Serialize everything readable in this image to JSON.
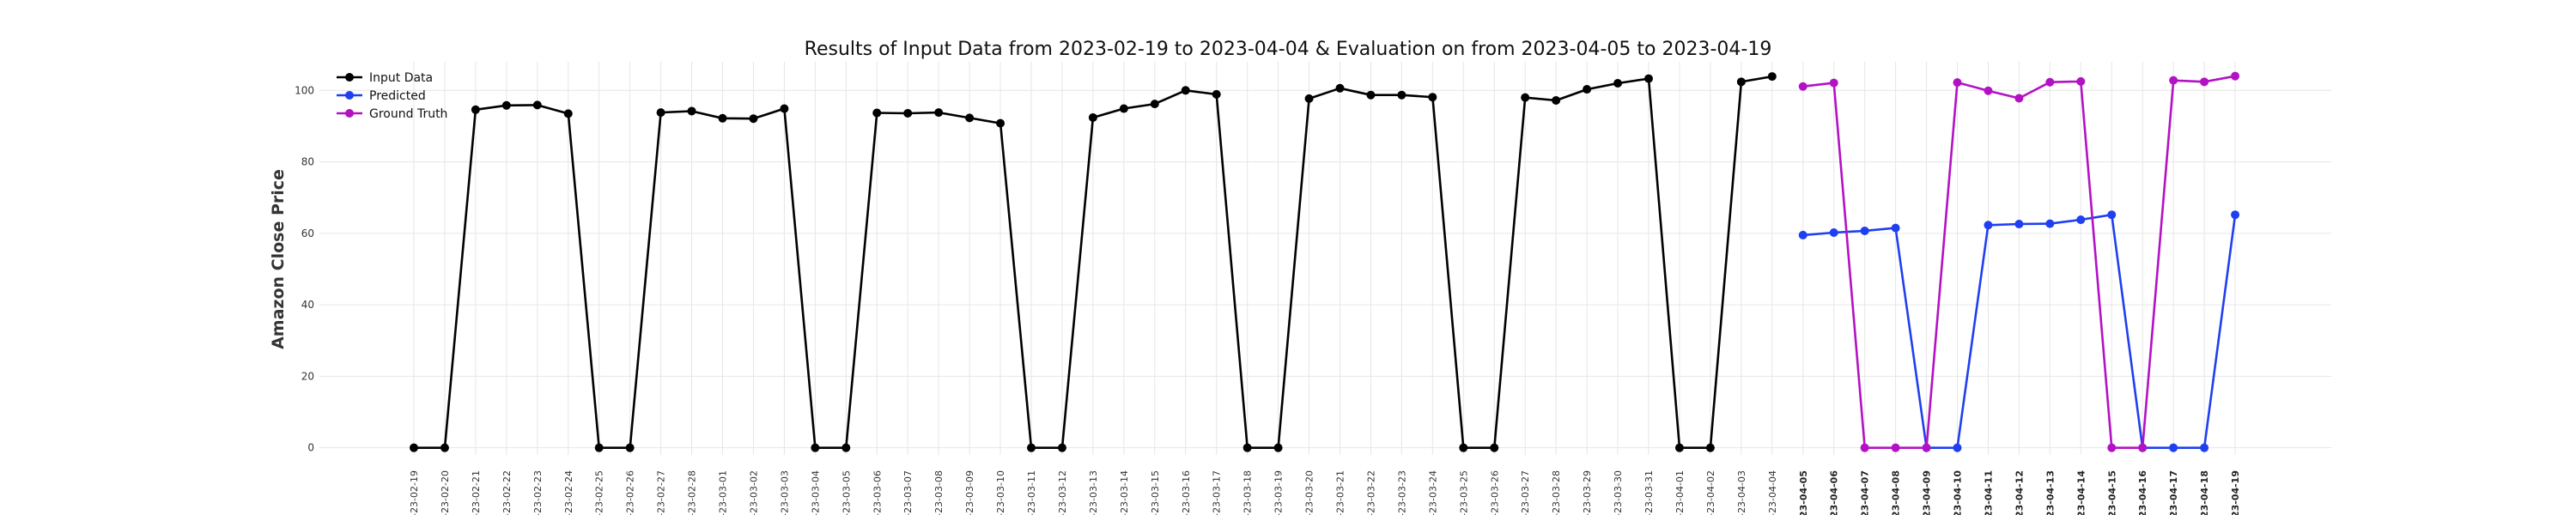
{
  "chart_data": {
    "type": "line",
    "title": "Results of Input Data from 2023-02-19 to 2023-04-04 & Evaluation on from 2023-04-05 to 2023-04-19",
    "xlabel": "",
    "ylabel": "Amazon Close Price",
    "ylim": [
      -2,
      108
    ],
    "yticks": [
      0,
      20,
      40,
      60,
      80,
      100
    ],
    "grid": true,
    "legend_position": "top-left",
    "x": [
      "2023-02-19",
      "2023-02-20",
      "2023-02-21",
      "2023-02-22",
      "2023-02-23",
      "2023-02-24",
      "2023-02-25",
      "2023-02-26",
      "2023-02-27",
      "2023-02-28",
      "2023-03-01",
      "2023-03-02",
      "2023-03-03",
      "2023-03-04",
      "2023-03-05",
      "2023-03-06",
      "2023-03-07",
      "2023-03-08",
      "2023-03-09",
      "2023-03-10",
      "2023-03-11",
      "2023-03-12",
      "2023-03-13",
      "2023-03-14",
      "2023-03-15",
      "2023-03-16",
      "2023-03-17",
      "2023-03-18",
      "2023-03-19",
      "2023-03-20",
      "2023-03-21",
      "2023-03-22",
      "2023-03-23",
      "2023-03-24",
      "2023-03-25",
      "2023-03-26",
      "2023-03-27",
      "2023-03-28",
      "2023-03-29",
      "2023-03-30",
      "2023-03-31",
      "2023-04-01",
      "2023-04-02",
      "2023-04-03",
      "2023-04-04",
      "2023-04-05",
      "2023-04-06",
      "2023-04-07",
      "2023-04-08",
      "2023-04-09",
      "2023-04-10",
      "2023-04-11",
      "2023-04-12",
      "2023-04-13",
      "2023-04-14",
      "2023-04-15",
      "2023-04-16",
      "2023-04-17",
      "2023-04-18",
      "2023-04-19"
    ],
    "tick_labels": [
      "-23-02-19",
      "-23-02-20",
      "-23-02-21",
      "-23-02-22",
      "-23-02-23",
      "-23-02-24",
      "-23-02-25",
      "-23-02-26",
      "-23-02-27",
      "-23-02-28",
      "-23-03-01",
      "-23-03-02",
      "-23-03-03",
      "-23-03-04",
      "-23-03-05",
      "-23-03-06",
      "-23-03-07",
      "-23-03-08",
      "-23-03-09",
      "-23-03-10",
      "-23-03-11",
      "-23-03-12",
      "-23-03-13",
      "-23-03-14",
      "-23-03-15",
      "-23-03-16",
      "-23-03-17",
      "-23-03-18",
      "-23-03-19",
      "-23-03-20",
      "-23-03-21",
      "-23-03-22",
      "-23-03-23",
      "-23-03-24",
      "-23-03-25",
      "-23-03-26",
      "-23-03-27",
      "-23-03-28",
      "-23-03-29",
      "-23-03-30",
      "-23-03-31",
      "-23-04-01",
      "-23-04-02",
      "-23-04-03",
      "-23-04-04",
      "-23-04-05",
      "-23-04-06",
      "-23-04-07",
      "-23-04-08",
      "-23-04-09",
      "-23-04-10",
      "-23-04-11",
      "-23-04-12",
      "-23-04-13",
      "-23-04-14",
      "-23-04-15",
      "-23-04-16",
      "-23-04-17",
      "-23-04-18",
      "-23-04-19"
    ],
    "bold_from": "2023-04-05",
    "series": [
      {
        "name": "Input Data",
        "color": "#000000",
        "points": [
          [
            "2023-02-19",
            0
          ],
          [
            "2023-02-20",
            0
          ],
          [
            "2023-02-21",
            94.6
          ],
          [
            "2023-02-22",
            95.8
          ],
          [
            "2023-02-23",
            95.9
          ],
          [
            "2023-02-24",
            93.5
          ],
          [
            "2023-02-25",
            0
          ],
          [
            "2023-02-26",
            0
          ],
          [
            "2023-02-27",
            93.8
          ],
          [
            "2023-02-28",
            94.2
          ],
          [
            "2023-03-01",
            92.2
          ],
          [
            "2023-03-02",
            92.1
          ],
          [
            "2023-03-03",
            94.9
          ],
          [
            "2023-03-04",
            0
          ],
          [
            "2023-03-05",
            0
          ],
          [
            "2023-03-06",
            93.7
          ],
          [
            "2023-03-07",
            93.6
          ],
          [
            "2023-03-08",
            93.8
          ],
          [
            "2023-03-09",
            92.3
          ],
          [
            "2023-03-10",
            90.8
          ],
          [
            "2023-03-11",
            0
          ],
          [
            "2023-03-12",
            0
          ],
          [
            "2023-03-13",
            92.4
          ],
          [
            "2023-03-14",
            94.9
          ],
          [
            "2023-03-15",
            96.2
          ],
          [
            "2023-03-16",
            100.0
          ],
          [
            "2023-03-17",
            98.9
          ],
          [
            "2023-03-18",
            0
          ],
          [
            "2023-03-19",
            0
          ],
          [
            "2023-03-20",
            97.7
          ],
          [
            "2023-03-21",
            100.6
          ],
          [
            "2023-03-22",
            98.7
          ],
          [
            "2023-03-23",
            98.7
          ],
          [
            "2023-03-24",
            98.1
          ],
          [
            "2023-03-25",
            0
          ],
          [
            "2023-03-26",
            0
          ],
          [
            "2023-03-27",
            98.0
          ],
          [
            "2023-03-28",
            97.2
          ],
          [
            "2023-03-29",
            100.3
          ],
          [
            "2023-03-30",
            102.0
          ],
          [
            "2023-03-31",
            103.3
          ],
          [
            "2023-04-01",
            0
          ],
          [
            "2023-04-02",
            0
          ],
          [
            "2023-04-03",
            102.4
          ],
          [
            "2023-04-04",
            103.9
          ]
        ]
      },
      {
        "name": "Predicted",
        "color": "#1f3ff0",
        "points": [
          [
            "2023-04-05",
            59.5
          ],
          [
            "2023-04-06",
            60.2
          ],
          [
            "2023-04-07",
            60.7
          ],
          [
            "2023-04-08",
            61.5
          ],
          [
            "2023-04-09",
            0
          ],
          [
            "2023-04-10",
            0
          ],
          [
            "2023-04-11",
            62.3
          ],
          [
            "2023-04-12",
            62.6
          ],
          [
            "2023-04-13",
            62.7
          ],
          [
            "2023-04-14",
            63.8
          ],
          [
            "2023-04-15",
            65.2
          ],
          [
            "2023-04-16",
            0
          ],
          [
            "2023-04-17",
            0
          ],
          [
            "2023-04-18",
            0
          ],
          [
            "2023-04-19",
            65.2
          ]
        ]
      },
      {
        "name": "Ground Truth",
        "color": "#b312c4",
        "points": [
          [
            "2023-04-05",
            101.1
          ],
          [
            "2023-04-06",
            102.1
          ],
          [
            "2023-04-07",
            0
          ],
          [
            "2023-04-08",
            0
          ],
          [
            "2023-04-09",
            0
          ],
          [
            "2023-04-10",
            102.2
          ],
          [
            "2023-04-11",
            99.9
          ],
          [
            "2023-04-12",
            97.8
          ],
          [
            "2023-04-13",
            102.3
          ],
          [
            "2023-04-14",
            102.5
          ],
          [
            "2023-04-15",
            0
          ],
          [
            "2023-04-16",
            0
          ],
          [
            "2023-04-17",
            102.8
          ],
          [
            "2023-04-18",
            102.4
          ],
          [
            "2023-04-19",
            104.0
          ]
        ]
      }
    ]
  }
}
